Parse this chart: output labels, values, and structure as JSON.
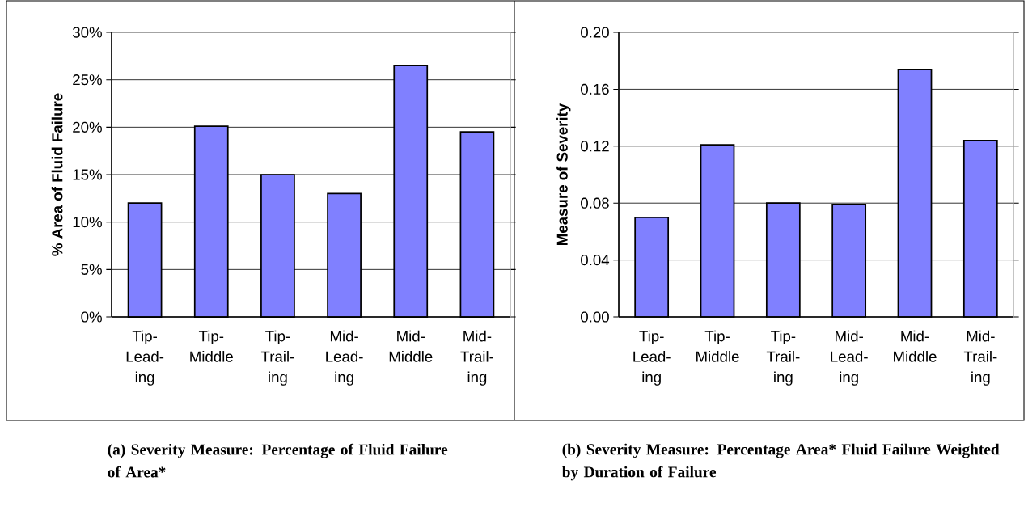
{
  "chart_data": [
    {
      "type": "bar",
      "title": "(a) Severity Measure: Percentage of Fluid Failure of Area*",
      "ylabel": "% Area of Fluid Failure",
      "categories": [
        "Tip-Lead-ing",
        "Tip-Middle",
        "Tip-Trail-ing",
        "Mid-Lead-ing",
        "Mid-Middle",
        "Mid-Trail-ing"
      ],
      "values": [
        12.0,
        20.1,
        15.0,
        13.0,
        26.5,
        19.5
      ],
      "color": "#8080ff",
      "ylim": [
        0,
        30
      ],
      "yticks": [
        {
          "value": 0,
          "label": "0%"
        },
        {
          "value": 5,
          "label": "5%"
        },
        {
          "value": 10,
          "label": "10%"
        },
        {
          "value": 15,
          "label": "15%"
        },
        {
          "value": 20,
          "label": "20%"
        },
        {
          "value": 25,
          "label": "25%"
        },
        {
          "value": 30,
          "label": "30%"
        }
      ],
      "grid": "y"
    },
    {
      "type": "bar",
      "title": "(b) Severity Measure: Percentage Area* Fluid Failure Weighted by Duration of Failure",
      "ylabel": "Measure of Severity",
      "categories": [
        "Tip-Lead-ing",
        "Tip-Middle",
        "Tip-Trail-ing",
        "Mid-Lead-ing",
        "Mid-Middle",
        "Mid-Trail-ing"
      ],
      "values": [
        0.07,
        0.121,
        0.08,
        0.079,
        0.174,
        0.124
      ],
      "color": "#8080ff",
      "ylim": [
        0,
        0.2
      ],
      "yticks": [
        {
          "value": 0,
          "label": "0.00"
        },
        {
          "value": 0.04,
          "label": "0.04"
        },
        {
          "value": 0.08,
          "label": "0.08"
        },
        {
          "value": 0.12,
          "label": "0.12"
        },
        {
          "value": 0.16,
          "label": "0.16"
        },
        {
          "value": 0.2,
          "label": "0.20"
        }
      ],
      "grid": "y"
    }
  ]
}
